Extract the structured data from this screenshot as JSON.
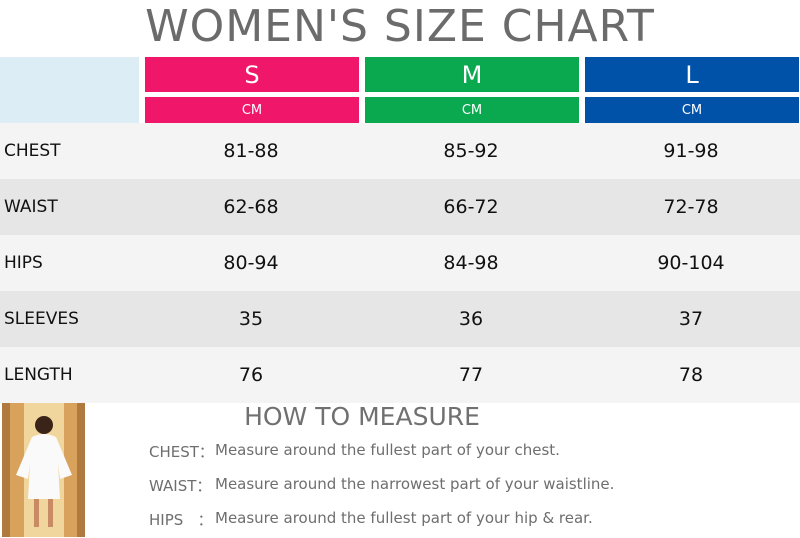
{
  "header": {
    "title": "WOMEN'S SIZE CHART"
  },
  "table": {
    "columns": [
      {
        "size": "S",
        "unit": "CM",
        "color": "#f0176b"
      },
      {
        "size": "M",
        "unit": "CM",
        "color": "#0aa84f"
      },
      {
        "size": "L",
        "unit": "CM",
        "color": "#0052a8"
      }
    ],
    "rows": [
      {
        "label": "CHEST",
        "values": [
          "81-88",
          "85-92",
          "91-98"
        ]
      },
      {
        "label": "WAIST",
        "values": [
          "62-68",
          "66-72",
          "72-78"
        ]
      },
      {
        "label": "HIPS",
        "values": [
          "80-94",
          "84-98",
          "90-104"
        ]
      },
      {
        "label": "SLEEVES",
        "values": [
          "35",
          "36",
          "37"
        ]
      },
      {
        "label": "LENGTH",
        "values": [
          "76",
          "77",
          "78"
        ]
      }
    ]
  },
  "measure": {
    "title": "HOW TO MEASURE",
    "items": [
      {
        "label": "CHEST：",
        "text": "Measure around the fullest part of your chest."
      },
      {
        "label": "WAIST：",
        "text": "Measure around the narrowest part of your waistline."
      },
      {
        "label": "HIPS   ：",
        "text": "Measure around the fullest part of your hip & rear."
      }
    ]
  }
}
